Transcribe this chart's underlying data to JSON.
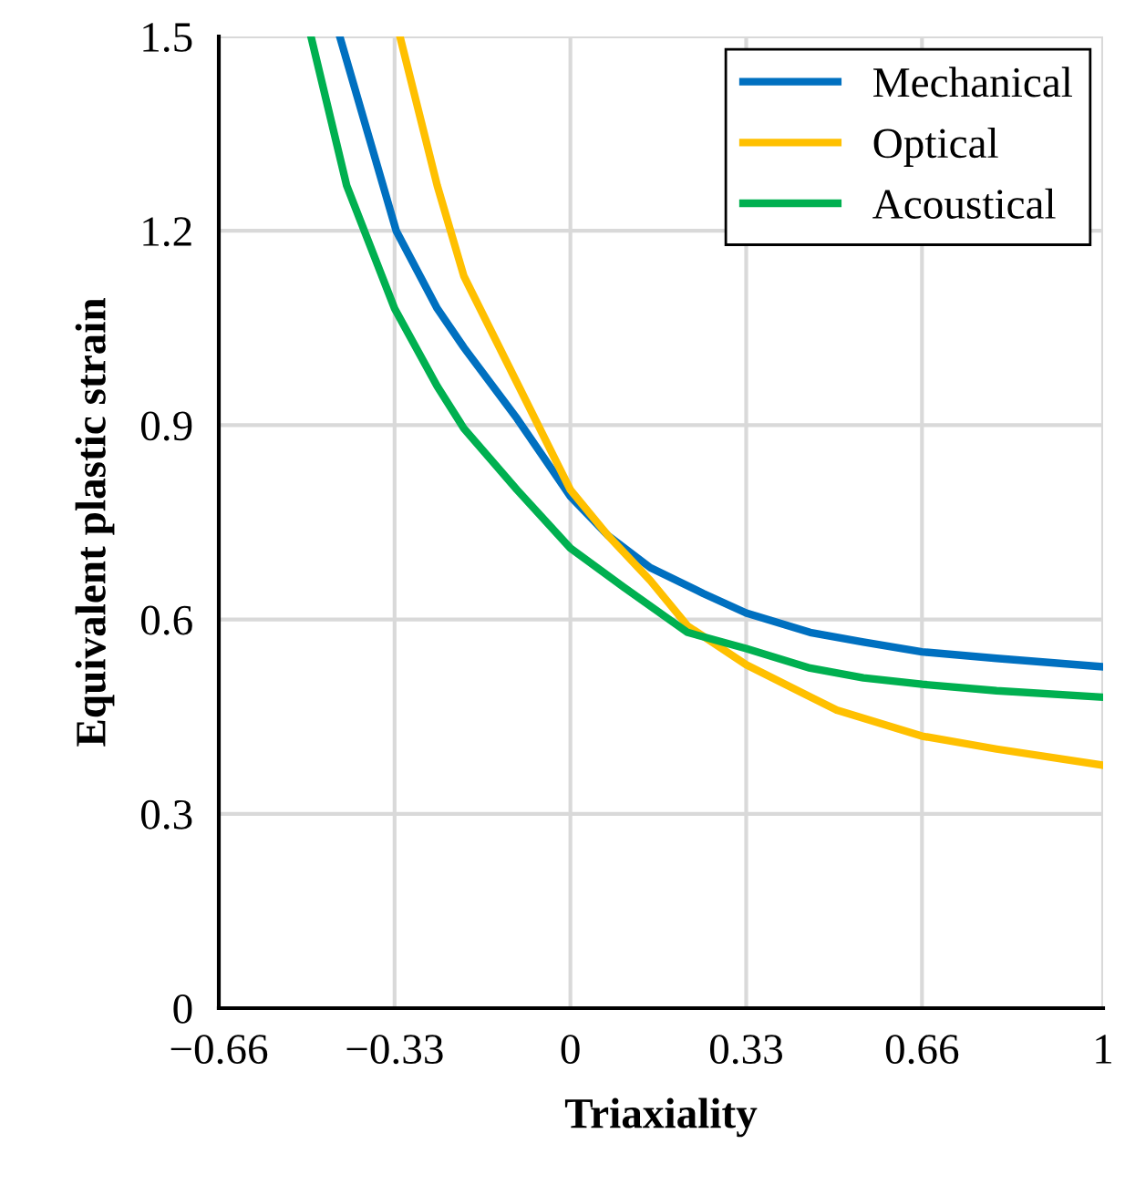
{
  "chart_data": {
    "type": "line",
    "xlabel": "Triaxiality",
    "ylabel": "Equivalent plastic strain",
    "xlim": [
      -0.66,
      1
    ],
    "ylim": [
      0,
      1.5
    ],
    "xticks": [
      {
        "value": -0.66,
        "label": "−0.66"
      },
      {
        "value": -0.33,
        "label": "−0.33"
      },
      0,
      0.33,
      0.66,
      1
    ],
    "yticks": [
      0,
      0.3,
      0.6,
      0.9,
      1.2,
      1.5
    ],
    "grid": true,
    "legend": "top right",
    "marker": "none",
    "line_style": "solid",
    "series": [
      {
        "name": "Mechanical",
        "color": "#0070c0",
        "x": [
          -0.433,
          -0.38,
          -0.327,
          -0.25,
          -0.2,
          -0.1,
          0,
          0.07,
          0.15,
          0.25,
          0.33,
          0.45,
          0.55,
          0.66,
          0.8,
          1
        ],
        "values": [
          1.5,
          1.35,
          1.2,
          1.08,
          1.02,
          0.91,
          0.79,
          0.73,
          0.68,
          0.64,
          0.61,
          0.58,
          0.565,
          0.55,
          0.54,
          0.527
        ]
      },
      {
        "name": "Optical",
        "color": "#ffc000",
        "x": [
          -0.32,
          -0.25,
          -0.2,
          -0.1,
          0,
          0.07,
          0.15,
          0.22,
          0.33,
          0.5,
          0.66,
          0.8,
          1
        ],
        "values": [
          1.5,
          1.27,
          1.13,
          0.965,
          0.8,
          0.73,
          0.66,
          0.59,
          0.53,
          0.46,
          0.42,
          0.4,
          0.375
        ]
      },
      {
        "name": "Acoustical",
        "color": "#00b050",
        "x": [
          -0.487,
          -0.42,
          -0.33,
          -0.25,
          -0.2,
          -0.1,
          0,
          0.1,
          0.22,
          0.33,
          0.45,
          0.55,
          0.66,
          0.8,
          1
        ],
        "values": [
          1.5,
          1.27,
          1.08,
          0.96,
          0.895,
          0.8,
          0.71,
          0.65,
          0.58,
          0.555,
          0.525,
          0.51,
          0.5,
          0.49,
          0.48
        ]
      }
    ]
  }
}
